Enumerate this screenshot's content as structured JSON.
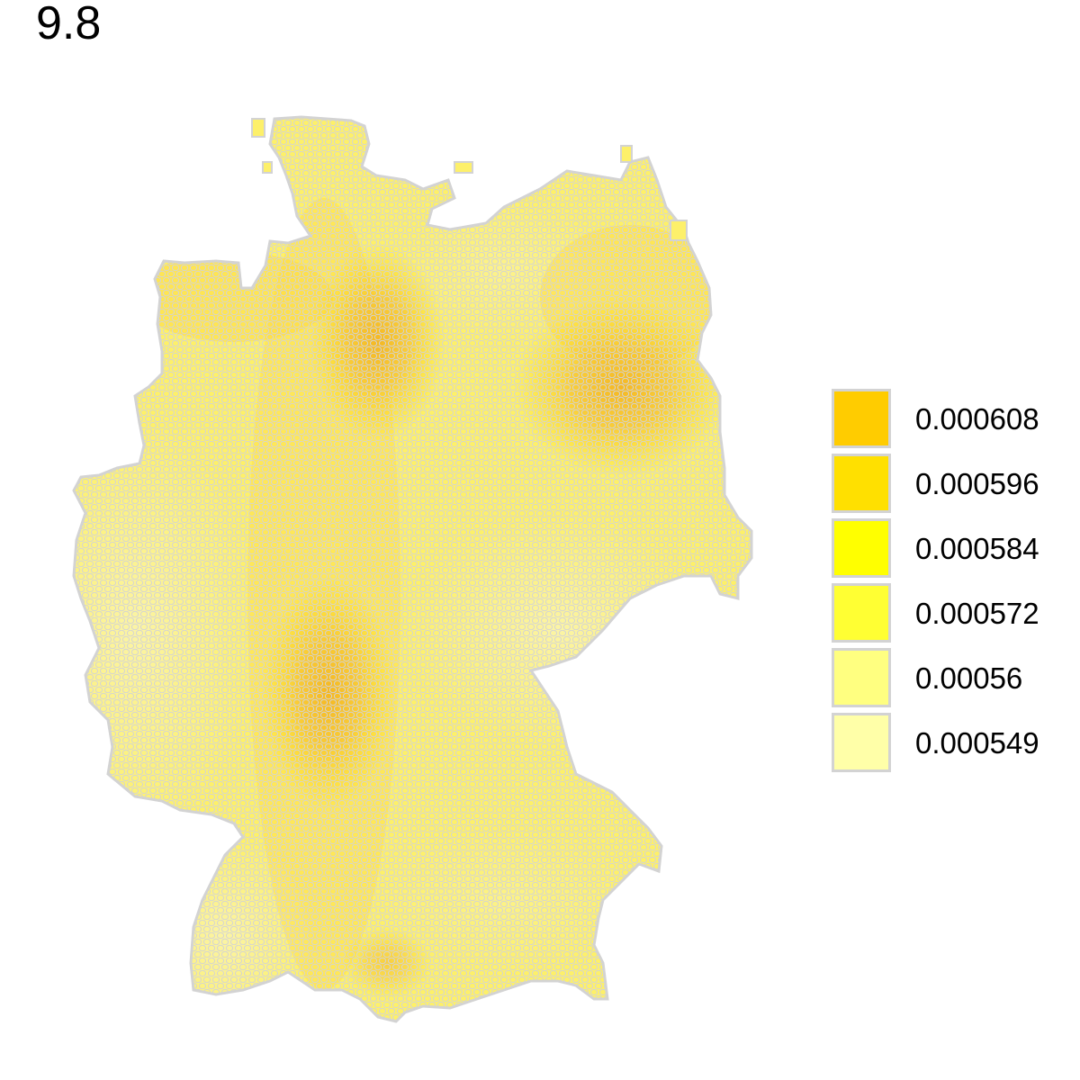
{
  "title": "9.8",
  "map": {
    "region": "Germany",
    "cell_border_color": "#d3d3d3",
    "colors": [
      "#ffcc00",
      "#ffe000",
      "#ffff00",
      "#ffff33",
      "#ffff80",
      "#ffffa8"
    ]
  },
  "legend": {
    "items": [
      {
        "label": "0.000608",
        "color": "#ffcc00"
      },
      {
        "label": "0.000596",
        "color": "#ffe000"
      },
      {
        "label": "0.000584",
        "color": "#ffff00"
      },
      {
        "label": "0.000572",
        "color": "#ffff33"
      },
      {
        "label": "0.00056",
        "color": "#ffff80"
      },
      {
        "label": "0.000549",
        "color": "#ffffa8"
      }
    ]
  }
}
